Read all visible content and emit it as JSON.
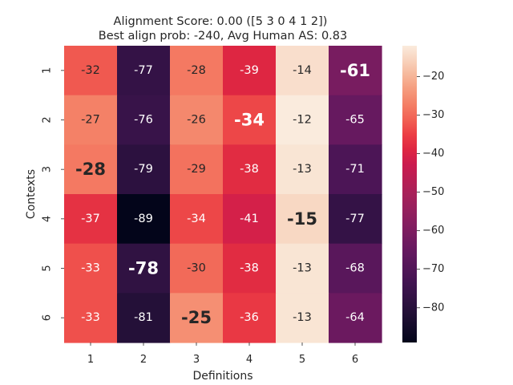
{
  "chart_data": {
    "type": "heatmap",
    "title_lines": [
      "Alignment Score: 0.00 ([5 3 0 4 1 2])",
      "Best align prob: -240, Avg Human AS: 0.83"
    ],
    "xlabel": "Definitions",
    "ylabel": "Contexts",
    "x_categories": [
      "1",
      "2",
      "3",
      "4",
      "5",
      "6"
    ],
    "y_categories": [
      "1",
      "2",
      "3",
      "4",
      "5",
      "6"
    ],
    "values": [
      [
        -32,
        -77,
        -28,
        -39,
        -14,
        -61
      ],
      [
        -27,
        -76,
        -26,
        -34,
        -12,
        -65
      ],
      [
        -28,
        -79,
        -29,
        -38,
        -13,
        -71
      ],
      [
        -37,
        -89,
        -34,
        -41,
        -15,
        -77
      ],
      [
        -33,
        -78,
        -30,
        -38,
        -13,
        -68
      ],
      [
        -33,
        -81,
        -25,
        -36,
        -13,
        -64
      ]
    ],
    "highlighted_cells": [
      [
        0,
        5
      ],
      [
        1,
        3
      ],
      [
        2,
        0
      ],
      [
        3,
        4
      ],
      [
        4,
        1
      ],
      [
        5,
        2
      ]
    ],
    "value_range": [
      -89,
      -12
    ],
    "colormap": "rocket",
    "colorbar_ticks": [
      -20,
      -30,
      -40,
      -50,
      -60,
      -70,
      -80
    ],
    "colorbar_tick_labels": [
      "−20",
      "−30",
      "−40",
      "−50",
      "−60",
      "−70",
      "−80"
    ]
  }
}
